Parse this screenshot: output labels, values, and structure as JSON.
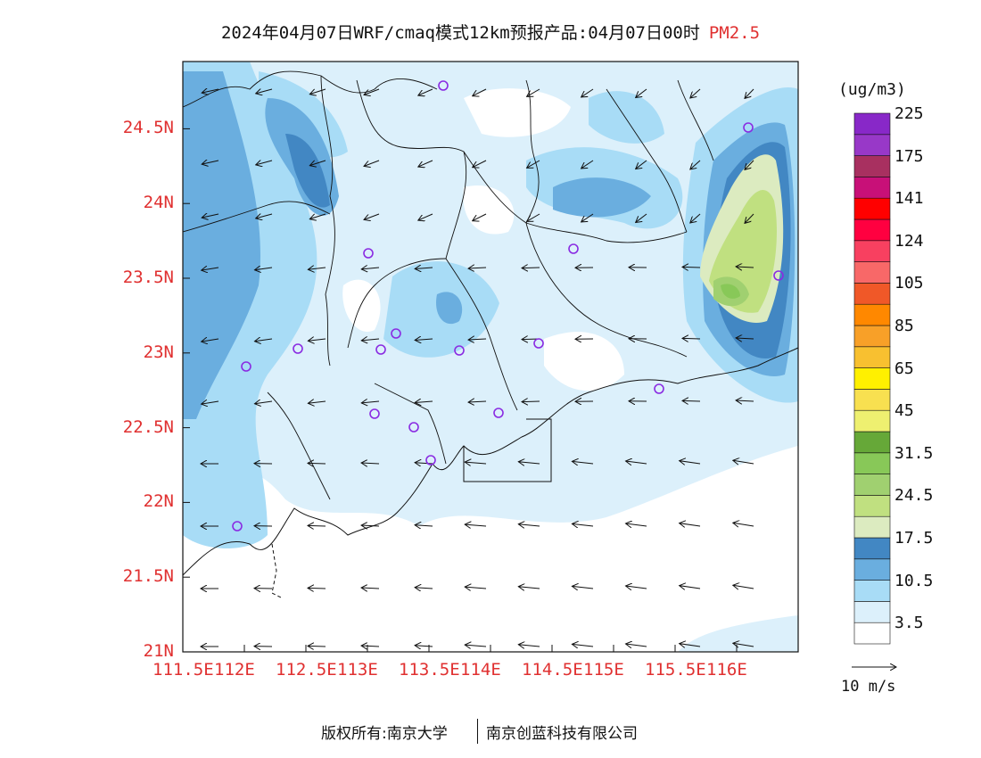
{
  "header": {
    "title": "2024年04月07日WRF/cmaq模式12km预报产品:04月07日00时",
    "species": "PM2.5"
  },
  "axes": {
    "y_ticks": [
      "24.5N",
      "24N",
      "23.5N",
      "23N",
      "22.5N",
      "22N",
      "21.5N",
      "21N"
    ],
    "x_ticks": [
      "111.5E",
      "112E",
      "112.5E",
      "113E",
      "113.5E",
      "114E",
      "114.5E",
      "115E",
      "115.5E",
      "116E"
    ],
    "lon_range": [
      111.5,
      116.5
    ],
    "lat_range": [
      21.0,
      24.95
    ],
    "label_color": "#e03030"
  },
  "colorbar": {
    "unit": "(ug/m3)",
    "colors": [
      "#ffffff",
      "#dcf0fb",
      "#a8dcf6",
      "#6aaedf",
      "#4287c3",
      "#dcebc0",
      "#c0e080",
      "#a0d070",
      "#88c858",
      "#66a838",
      "#eef070",
      "#f8e050",
      "#fff000",
      "#f8c030",
      "#f8a028",
      "#ff8800",
      "#f05828",
      "#f86868",
      "#f84060",
      "#ff0040",
      "#ff0000",
      "#c81078",
      "#a83060",
      "#9838c8",
      "#8828c8"
    ],
    "labels": [
      "3.5",
      "10.5",
      "17.5",
      "24.5",
      "31.5",
      "45",
      "65",
      "85",
      "105",
      "124",
      "141",
      "175",
      "225"
    ]
  },
  "wind_scale": {
    "label": "10 m/s"
  },
  "footer": {
    "left": "版权所有:南京大学",
    "right": "南京创蓝科技有限公司"
  }
}
